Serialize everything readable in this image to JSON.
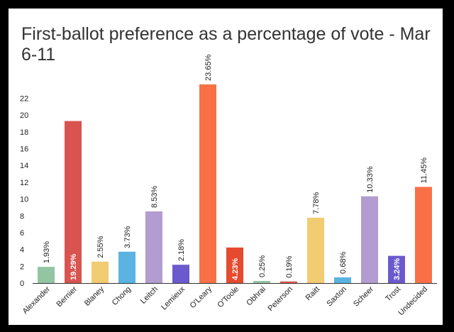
{
  "chart_data": {
    "type": "bar",
    "title": "First-ballot preference as a percentage of vote - Mar 6-11",
    "xlabel": "",
    "ylabel": "",
    "ylim": [
      0,
      24
    ],
    "yticks": [
      0,
      2,
      4,
      6,
      8,
      10,
      12,
      14,
      16,
      18,
      20,
      22
    ],
    "grid": false,
    "categories": [
      "Alexander",
      "Bernier",
      "Blaney",
      "Chong",
      "Leitch",
      "Lemieux",
      "O'Leary",
      "O'Toole",
      "Obhrai",
      "Peterson",
      "Raitt",
      "Saxton",
      "Scheer",
      "Trost",
      "Undecided"
    ],
    "values": [
      1.93,
      19.29,
      2.55,
      3.73,
      8.53,
      2.18,
      23.65,
      4.23,
      0.25,
      0.19,
      7.78,
      0.68,
      10.33,
      3.24,
      11.45
    ],
    "labels": [
      "1.93%",
      "19.29%",
      "2.55%",
      "3.73%",
      "8.53%",
      "2.18%",
      "23.65%",
      "4.23%",
      "0.25%",
      "0.19%",
      "7.78%",
      "0.68%",
      "10.33%",
      "3.24%",
      "11.45%"
    ],
    "colors": [
      "#93c5a2",
      "#d9534f",
      "#f2cc72",
      "#5ab3e0",
      "#b39cd0",
      "#6a5acd",
      "#f97047",
      "#e64a2e",
      "#93c5a2",
      "#d9534f",
      "#f2cc72",
      "#5ab3e0",
      "#b39cd0",
      "#6a5acd",
      "#f97047"
    ],
    "label_inside_white": [
      false,
      true,
      false,
      false,
      false,
      false,
      false,
      true,
      false,
      false,
      false,
      false,
      false,
      true,
      false
    ]
  }
}
